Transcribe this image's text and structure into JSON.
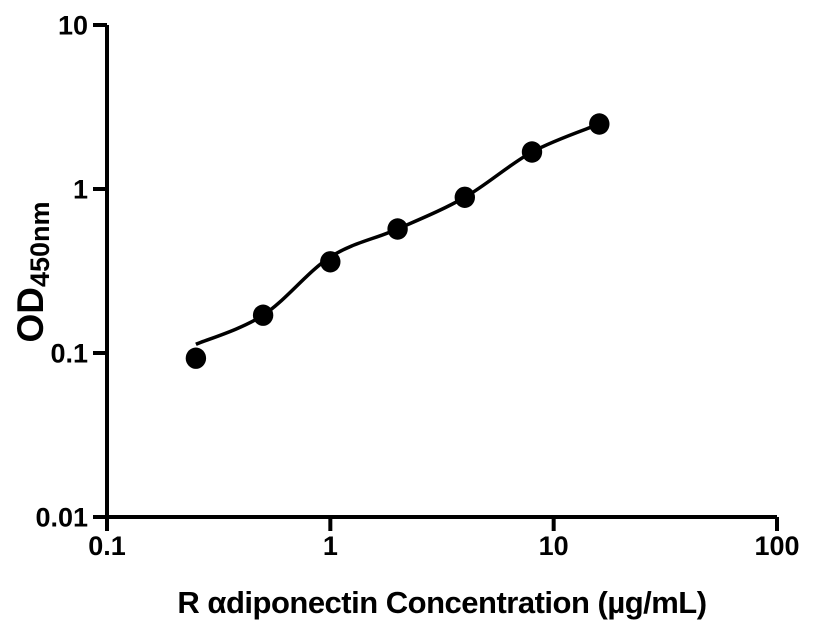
{
  "chart_data": {
    "type": "scatter",
    "title": "",
    "xlabel": "R αdiponectin Concentration (µg/mL)",
    "ylabel_main": "OD",
    "ylabel_sub": "450nm",
    "x_scale": "log",
    "y_scale": "log",
    "xlim": [
      0.1,
      100
    ],
    "ylim": [
      0.01,
      10
    ],
    "x_tick_values": [
      0.1,
      1,
      10,
      100
    ],
    "x_tick_labels": [
      "0.1",
      "1",
      "10",
      "100"
    ],
    "y_tick_values": [
      10,
      1,
      0.1,
      0.01
    ],
    "y_tick_labels": [
      "10",
      "1",
      "0.1",
      "0.01"
    ],
    "grid": false,
    "legend": "none",
    "points": {
      "x": [
        0.25,
        0.5,
        1,
        2,
        4,
        8,
        16
      ],
      "y": [
        0.093,
        0.17,
        0.36,
        0.57,
        0.89,
        1.68,
        2.49
      ]
    },
    "fit_curve": {
      "x": [
        0.25,
        0.5,
        1,
        2,
        4,
        8,
        16
      ],
      "y": [
        0.113,
        0.17,
        0.385,
        0.57,
        0.89,
        1.68,
        2.49
      ]
    },
    "colors": {
      "axis": "#000000",
      "marker": "#000000",
      "curve": "#000000",
      "background": "#ffffff"
    }
  }
}
